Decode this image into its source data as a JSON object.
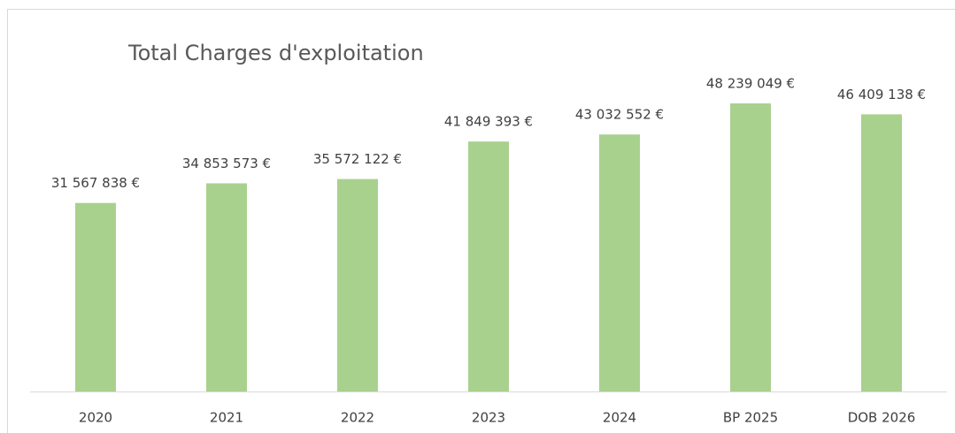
{
  "chart_data": {
    "type": "bar",
    "title": "Total Charges d'exploitation",
    "categories": [
      "2020",
      "2021",
      "2022",
      "2023",
      "2024",
      "BP 2025",
      "DOB 2026"
    ],
    "values": [
      31567838,
      34853573,
      35572122,
      41849393,
      43032552,
      48239049,
      46409138
    ],
    "value_labels": [
      "31 567 838 €",
      "34 853 573 €",
      "35 572 122 €",
      "41 849 393 €",
      "43 032 552 €",
      "48 239 049 €",
      "46 409 138 €"
    ],
    "color": "#a9d18e"
  }
}
